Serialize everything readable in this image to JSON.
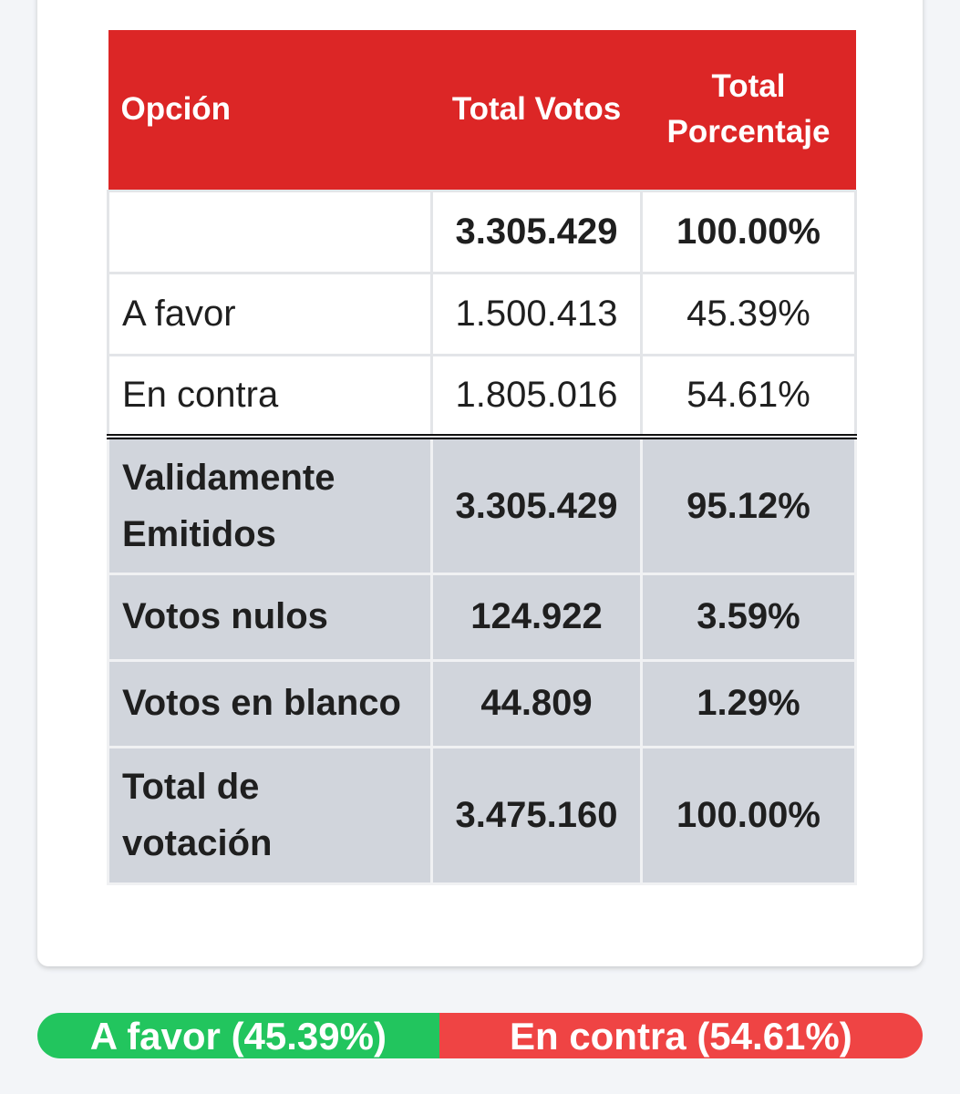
{
  "table": {
    "headers": {
      "option": "Opción",
      "total_votes": "Total Votos",
      "total_percent_line1": "Total",
      "total_percent_line2": "Porcentaje"
    },
    "rows": [
      {
        "option": "",
        "votes": "3.305.429",
        "percent": "100.00%"
      },
      {
        "option": "A favor",
        "votes": "1.500.413",
        "percent": "45.39%"
      },
      {
        "option": "En contra",
        "votes": "1.805.016",
        "percent": "54.61%"
      }
    ],
    "summary_rows": [
      {
        "option_line1": "Validamente",
        "option_line2": "Emitidos",
        "votes": "3.305.429",
        "percent": "95.12%"
      },
      {
        "option": "Votos nulos",
        "votes": "124.922",
        "percent": "3.59%"
      },
      {
        "option": "Votos en blanco",
        "votes": "44.809",
        "percent": "1.29%"
      },
      {
        "option_line1": "Total de",
        "option_line2": "votación",
        "votes": "3.475.160",
        "percent": "100.00%"
      }
    ]
  },
  "result_bar": {
    "favor_label": "A favor (45.39%)",
    "favor_fraction": 0.4539,
    "favor_color": "#22c55e",
    "contra_label": "En contra (54.61%)",
    "contra_fraction": 0.5461,
    "contra_color": "#ef4444"
  },
  "colors": {
    "header_red": "#dc2626",
    "summary_gray": "#d1d5dc"
  }
}
